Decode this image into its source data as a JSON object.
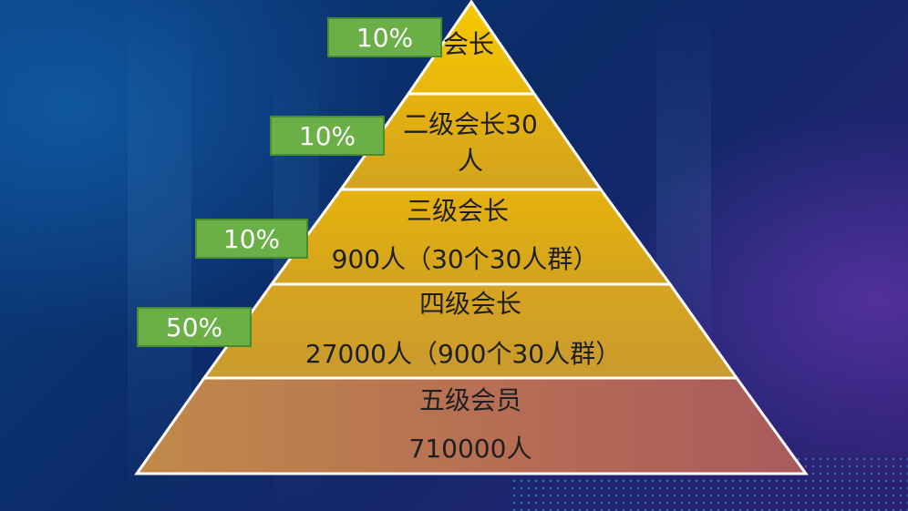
{
  "colors": {
    "tier_top": "#f2c200",
    "tier_mid": "#e0b114",
    "tier_bottom": "#b86a55",
    "badge_fill": "#6ab046",
    "outline": "#ffffff"
  },
  "tiers": [
    {
      "lines": [
        "会长"
      ]
    },
    {
      "lines": [
        "二级会长30",
        "人"
      ]
    },
    {
      "lines": [
        "三级会长",
        "900人（30个30人群）"
      ]
    },
    {
      "lines": [
        "四级会长",
        "27000人（900个30人群）"
      ]
    },
    {
      "lines": [
        "五级会员",
        "710000人"
      ]
    }
  ],
  "badges": [
    {
      "label": "10%"
    },
    {
      "label": "10%"
    },
    {
      "label": "10%"
    },
    {
      "label": "50%"
    }
  ]
}
